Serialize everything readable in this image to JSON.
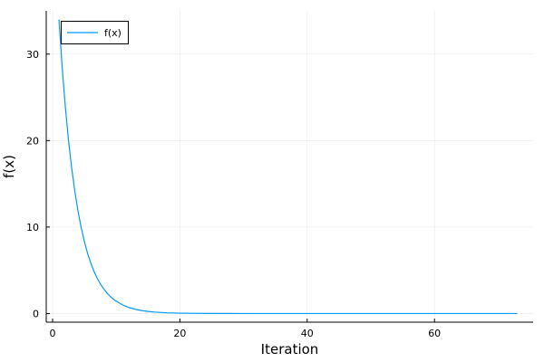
{
  "chart_data": {
    "type": "line",
    "xlabel": "Iteration",
    "ylabel": "f(x)",
    "xlim": [
      -1,
      75.5
    ],
    "ylim": [
      -1,
      35
    ],
    "x_ticks": [
      0,
      20,
      40,
      60
    ],
    "y_ticks": [
      0,
      10,
      20,
      30
    ],
    "grid": true,
    "legend_position": "top-left",
    "series": [
      {
        "name": "f(x)",
        "color": "#009af9",
        "x": [
          1,
          1.5,
          2,
          2.5,
          3,
          3.5,
          4,
          4.5,
          5,
          5.5,
          6,
          6.5,
          7,
          7.5,
          8,
          8.5,
          9,
          9.5,
          10,
          11,
          12,
          13,
          14,
          15,
          16,
          18,
          20,
          25,
          30,
          40,
          50,
          60,
          73
        ],
        "y": [
          34,
          28.5,
          23.9,
          20.0,
          16.8,
          14.1,
          11.8,
          9.9,
          8.3,
          6.95,
          5.83,
          4.88,
          4.09,
          3.43,
          2.88,
          2.41,
          2.02,
          1.69,
          1.42,
          1.0,
          0.7,
          0.49,
          0.35,
          0.24,
          0.17,
          0.08,
          0.04,
          0.01,
          0.0,
          0.0,
          0.0,
          0.0,
          0.0
        ]
      }
    ]
  }
}
